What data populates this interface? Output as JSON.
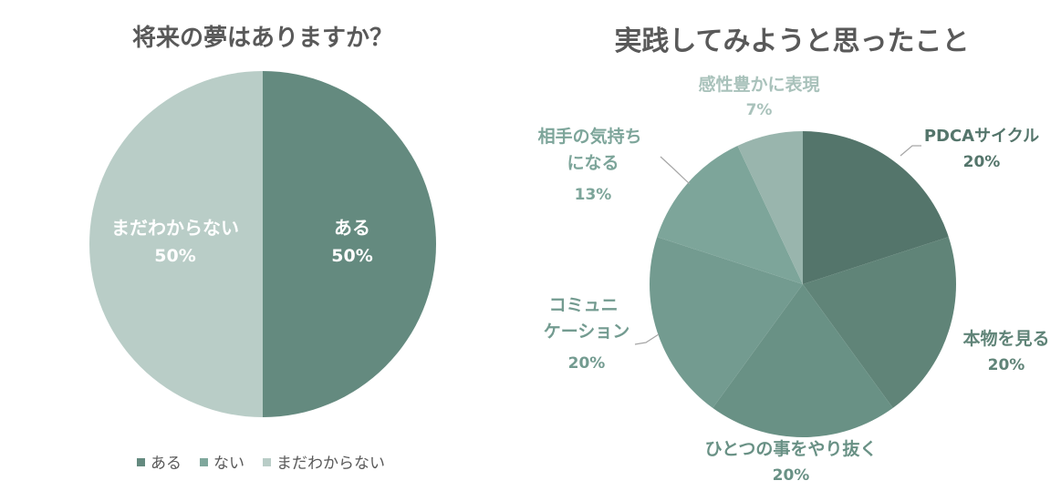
{
  "chart_data": [
    {
      "type": "pie",
      "title": "将来の夢はありますか？",
      "slices": [
        {
          "label": "ある",
          "value": 50,
          "pct_label": "50%",
          "color": "#648a7f"
        },
        {
          "label": "ない",
          "value": 0,
          "pct_label": "",
          "color": "#7fa79c"
        },
        {
          "label": "まだわからない",
          "value": 50,
          "pct_label": "50%",
          "color": "#b9cdc7"
        }
      ],
      "legend": {
        "position": "bottom",
        "items": [
          {
            "label": "ある",
            "color": "#648a7f"
          },
          {
            "label": "ない",
            "color": "#7fa79c"
          },
          {
            "label": "まだわからない",
            "color": "#b9cdc7"
          }
        ]
      }
    },
    {
      "type": "pie",
      "title": "実践してみようと思ったこと",
      "slices": [
        {
          "label": "PDCAサイクル",
          "value": 20,
          "pct_label": "20%",
          "color": "#54756b"
        },
        {
          "label": "本物を見る",
          "value": 20,
          "pct_label": "20%",
          "color": "#608478"
        },
        {
          "label": "ひとつの事をやり抜く",
          "value": 20,
          "pct_label": "20%",
          "color": "#699185"
        },
        {
          "label": "コミュニケーション",
          "value": 20,
          "pct_label": "20%",
          "color": "#739b90"
        },
        {
          "label": "相手の気持ちになる",
          "value": 13,
          "pct_label": "13%",
          "color": "#7da59a"
        },
        {
          "label": "感性豊かに表現",
          "value": 7,
          "pct_label": "7%",
          "color": "#99b5ad"
        }
      ]
    }
  ]
}
